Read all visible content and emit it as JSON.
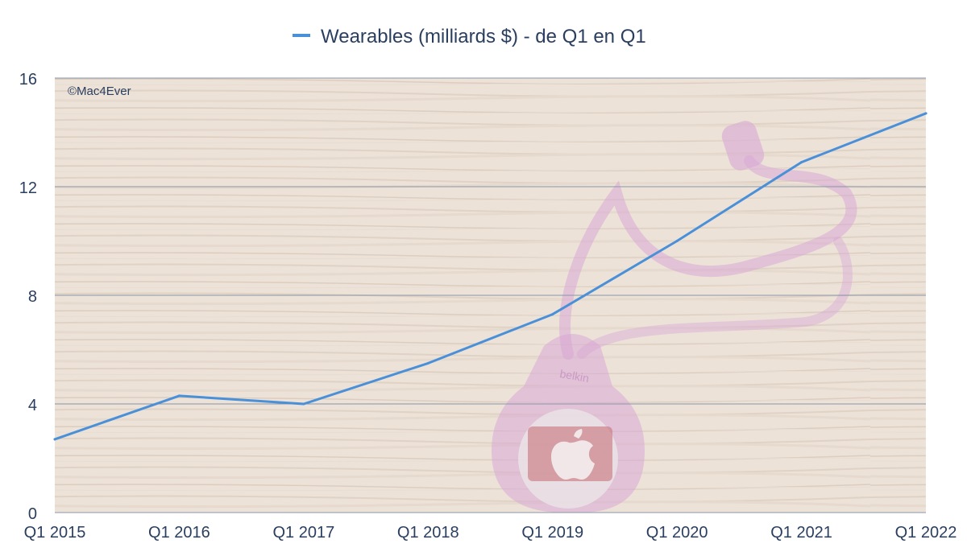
{
  "colors": {
    "series": "#4a90d9",
    "text": "#2a3f5f",
    "grid": "#8a97a8",
    "plot_background": "#ede3da",
    "photo_keyring": "#d9a8d6"
  },
  "watermark": "©Mac4Ever",
  "photo_brand": "belkin",
  "background_image": "photo-of-pink-airtag-keyring-on-wooden-surface",
  "chart_data": {
    "type": "line",
    "title": "",
    "xlabel": "",
    "ylabel": "",
    "categories": [
      "Q1 2015",
      "Q1 2016",
      "Q1 2017",
      "Q1 2018",
      "Q1 2019",
      "Q1 2020",
      "Q1 2021",
      "Q1 2022"
    ],
    "series": [
      {
        "name": "Wearables (milliards $) - de Q1 en Q1",
        "values": [
          2.7,
          4.3,
          4.0,
          5.5,
          7.3,
          10.0,
          12.9,
          14.7
        ]
      }
    ],
    "ylim": [
      0,
      16
    ],
    "yticks": [
      "0",
      "4",
      "8",
      "12",
      "16"
    ],
    "grid": true,
    "legend": "top-center"
  }
}
